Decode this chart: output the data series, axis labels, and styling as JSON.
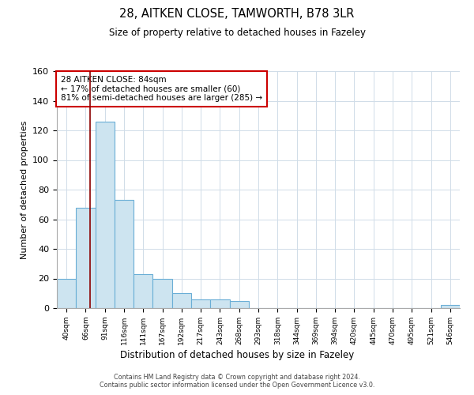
{
  "title1": "28, AITKEN CLOSE, TAMWORTH, B78 3LR",
  "title2": "Size of property relative to detached houses in Fazeley",
  "xlabel": "Distribution of detached houses by size in Fazeley",
  "ylabel": "Number of detached properties",
  "bin_labels": [
    "40sqm",
    "66sqm",
    "91sqm",
    "116sqm",
    "141sqm",
    "167sqm",
    "192sqm",
    "217sqm",
    "243sqm",
    "268sqm",
    "293sqm",
    "318sqm",
    "344sqm",
    "369sqm",
    "394sqm",
    "420sqm",
    "445sqm",
    "470sqm",
    "495sqm",
    "521sqm",
    "546sqm"
  ],
  "bar_values": [
    20,
    68,
    126,
    73,
    23,
    20,
    10,
    6,
    6,
    5,
    0,
    0,
    0,
    0,
    0,
    0,
    0,
    0,
    0,
    0,
    2
  ],
  "bar_color": "#cde4f0",
  "bar_edge_color": "#6aaed6",
  "property_line_x": 1.72,
  "ylim": [
    0,
    160
  ],
  "yticks": [
    0,
    20,
    40,
    60,
    80,
    100,
    120,
    140,
    160
  ],
  "annotation_title": "28 AITKEN CLOSE: 84sqm",
  "annotation_line1": "← 17% of detached houses are smaller (60)",
  "annotation_line2": "81% of semi-detached houses are larger (285) →",
  "footer_line1": "Contains HM Land Registry data © Crown copyright and database right 2024.",
  "footer_line2": "Contains public sector information licensed under the Open Government Licence v3.0.",
  "red_line_color": "#8b0000",
  "grid_color": "#d0dce8"
}
